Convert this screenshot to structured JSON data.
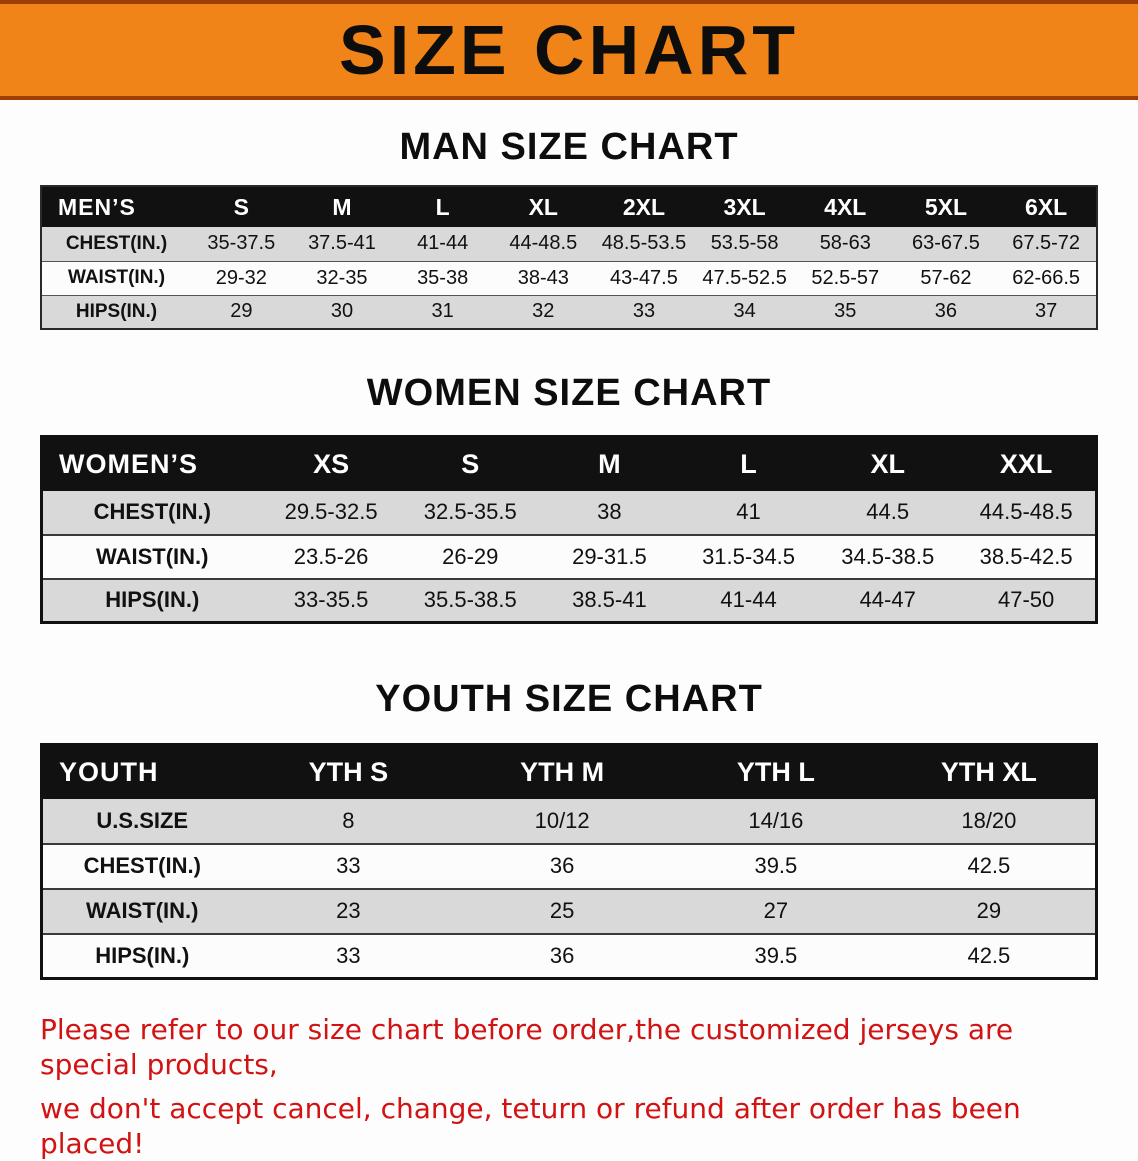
{
  "banner": {
    "title": "SIZE CHART"
  },
  "colors": {
    "banner_bg": "#f08418",
    "banner_border": "#9e3d05",
    "header_row_bg": "#111111",
    "header_row_text": "#ffffff",
    "shaded_row_bg": "#d9d9d9",
    "disclaimer_text": "#d21313"
  },
  "sections": [
    {
      "heading": "MAN SIZE CHART",
      "table": {
        "header": [
          "MEN’S",
          "S",
          "M",
          "L",
          "XL",
          "2XL",
          "3XL",
          "4XL",
          "5XL",
          "6XL"
        ],
        "rows": [
          {
            "label": "CHEST(IN.)",
            "values": [
              "35-37.5",
              "37.5-41",
              "41-44",
              "44-48.5",
              "48.5-53.5",
              "53.5-58",
              "58-63",
              "63-67.5",
              "67.5-72"
            ]
          },
          {
            "label": "WAIST(IN.)",
            "values": [
              "29-32",
              "32-35",
              "35-38",
              "38-43",
              "43-47.5",
              "47.5-52.5",
              "52.5-57",
              "57-62",
              "62-66.5"
            ]
          },
          {
            "label": "HIPS(IN.)",
            "values": [
              "29",
              "30",
              "31",
              "32",
              "33",
              "34",
              "35",
              "36",
              "37"
            ]
          }
        ]
      }
    },
    {
      "heading": "WOMEN SIZE CHART",
      "table": {
        "header": [
          "WOMEN’S",
          "XS",
          "S",
          "M",
          "L",
          "XL",
          "XXL"
        ],
        "rows": [
          {
            "label": "CHEST(IN.)",
            "values": [
              "29.5-32.5",
              "32.5-35.5",
              "38",
              "41",
              "44.5",
              "44.5-48.5"
            ]
          },
          {
            "label": "WAIST(IN.)",
            "values": [
              "23.5-26",
              "26-29",
              "29-31.5",
              "31.5-34.5",
              "34.5-38.5",
              "38.5-42.5"
            ]
          },
          {
            "label": "HIPS(IN.)",
            "values": [
              "33-35.5",
              "35.5-38.5",
              "38.5-41",
              "41-44",
              "44-47",
              "47-50"
            ]
          }
        ]
      }
    },
    {
      "heading": "YOUTH SIZE CHART",
      "table": {
        "header": [
          "YOUTH",
          "YTH S",
          "YTH M",
          "YTH L",
          "YTH XL"
        ],
        "rows": [
          {
            "label": "U.S.SIZE",
            "values": [
              "8",
              "10/12",
              "14/16",
              "18/20"
            ]
          },
          {
            "label": "CHEST(IN.)",
            "values": [
              "33",
              "36",
              "39.5",
              "42.5"
            ]
          },
          {
            "label": "WAIST(IN.)",
            "values": [
              "23",
              "25",
              "27",
              "29"
            ]
          },
          {
            "label": "HIPS(IN.)",
            "values": [
              "33",
              "36",
              "39.5",
              "42.5"
            ]
          }
        ]
      }
    }
  ],
  "disclaimer": {
    "line1": "Please refer to our size chart before order,the customized jerseys are special products,",
    "line2": "we don't accept cancel, change, teturn or refund after order has been placed!"
  }
}
